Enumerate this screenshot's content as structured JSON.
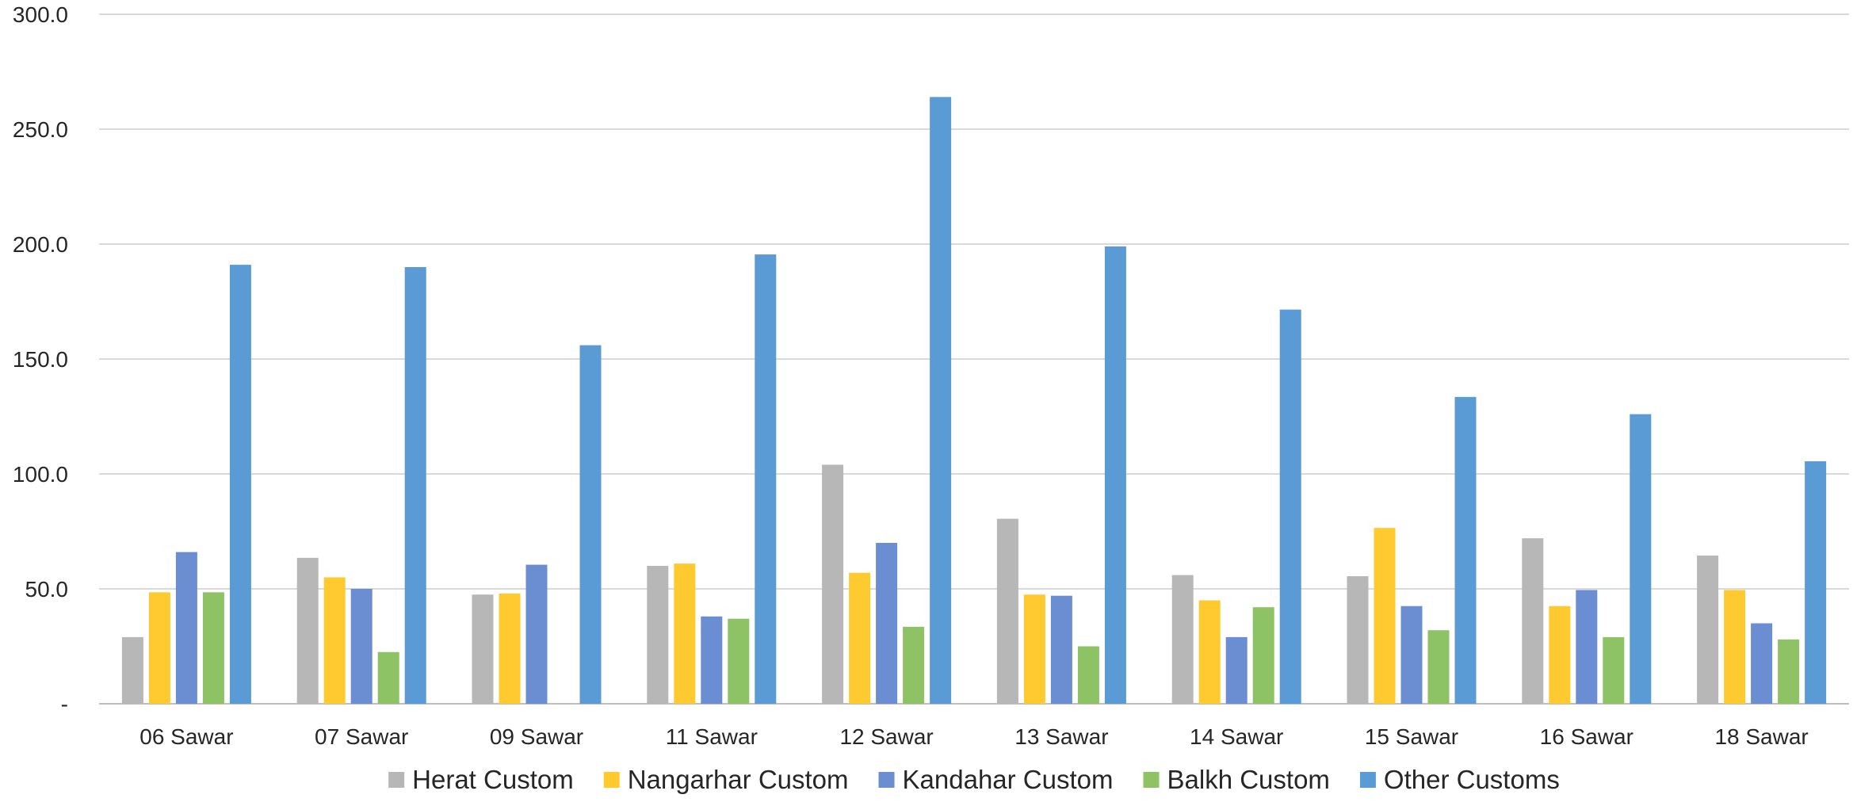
{
  "chart_data": {
    "type": "bar",
    "title": "",
    "xlabel": "",
    "ylabel": "",
    "ylim": [
      0,
      300
    ],
    "ytick_values": [
      0,
      50,
      100,
      150,
      200,
      250,
      300
    ],
    "ytick_labels": [
      "-",
      "50.0",
      "100.0",
      "150.0",
      "200.0",
      "250.0",
      "300.0"
    ],
    "grid": true,
    "legend_position": "bottom",
    "categories": [
      "06 Sawar",
      "07 Sawar",
      "09 Sawar",
      "11 Sawar",
      "12 Sawar",
      "13 Sawar",
      "14 Sawar",
      "15 Sawar",
      "16 Sawar",
      "18 Sawar"
    ],
    "series": [
      {
        "name": "Herat Custom",
        "color": "#B7B7B7",
        "values": [
          29,
          63.5,
          47.5,
          60,
          104,
          80.5,
          56,
          55.5,
          72,
          64.5
        ]
      },
      {
        "name": "Nangarhar Custom",
        "color": "#FFCA2F",
        "values": [
          48.5,
          55,
          48,
          61,
          57,
          47.5,
          45,
          76.5,
          42.5,
          49.5
        ]
      },
      {
        "name": "Kandahar Custom",
        "color": "#6B8ED3",
        "values": [
          66,
          50,
          60.5,
          38,
          70,
          47,
          29,
          42.5,
          49.5,
          35
        ]
      },
      {
        "name": "Balkh Custom",
        "color": "#8DC265",
        "values": [
          48.5,
          22.5,
          null,
          37,
          33.5,
          25,
          42,
          32,
          29,
          28
        ]
      },
      {
        "name": "Other Customs",
        "color": "#5B9BD5",
        "values": [
          191,
          190,
          156,
          195.5,
          264,
          199,
          171.5,
          133.5,
          126,
          105.5
        ]
      }
    ]
  }
}
